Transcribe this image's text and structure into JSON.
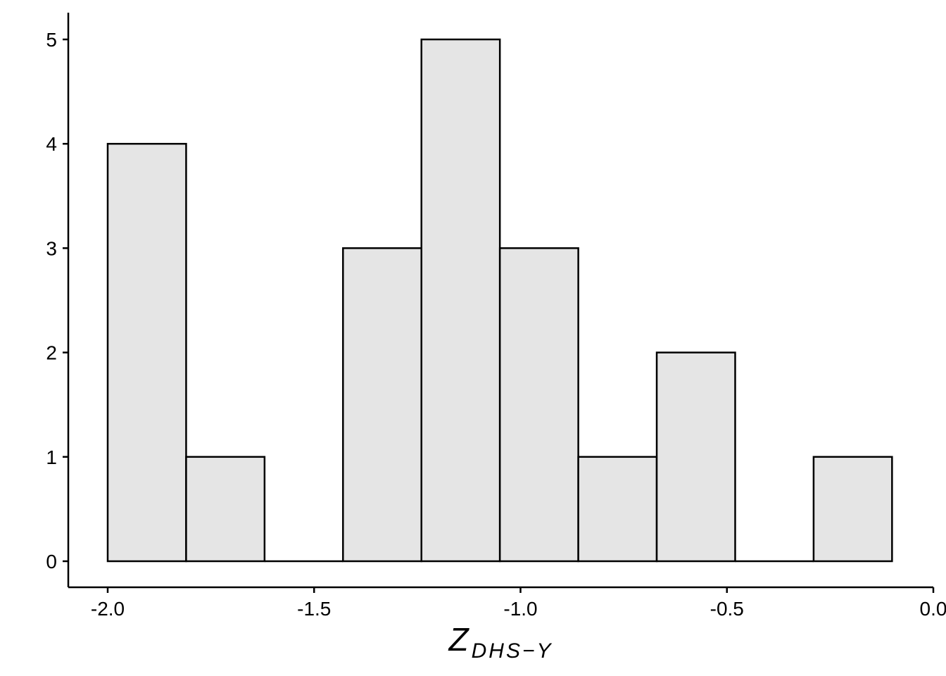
{
  "chart_data": {
    "type": "bar",
    "subtype": "histogram",
    "bins": [
      {
        "x0": -2.0,
        "x1": -1.81,
        "count": 4
      },
      {
        "x0": -1.81,
        "x1": -1.62,
        "count": 1
      },
      {
        "x0": -1.62,
        "x1": -1.43,
        "count": 0
      },
      {
        "x0": -1.43,
        "x1": -1.24,
        "count": 3
      },
      {
        "x0": -1.24,
        "x1": -1.05,
        "count": 5
      },
      {
        "x0": -1.05,
        "x1": -0.86,
        "count": 3
      },
      {
        "x0": -0.86,
        "x1": -0.67,
        "count": 1
      },
      {
        "x0": -0.67,
        "x1": -0.48,
        "count": 2
      },
      {
        "x0": -0.48,
        "x1": -0.29,
        "count": 0
      },
      {
        "x0": -0.29,
        "x1": -0.1,
        "count": 1
      }
    ],
    "xlabel": {
      "main": "Z",
      "subscript": "DHS−Y"
    },
    "ylabel": "",
    "xlim": [
      -2.09,
      0.0
    ],
    "ylim": [
      0,
      5.25
    ],
    "x_ticks": [
      {
        "value": -2.0,
        "label": "-2.0"
      },
      {
        "value": -1.5,
        "label": "-1.5"
      },
      {
        "value": -1.0,
        "label": "-1.0"
      },
      {
        "value": -0.5,
        "label": "-0.5"
      },
      {
        "value": 0.0,
        "label": "0.0"
      }
    ],
    "y_ticks": [
      {
        "value": 0,
        "label": "0"
      },
      {
        "value": 1,
        "label": "1"
      },
      {
        "value": 2,
        "label": "2"
      },
      {
        "value": 3,
        "label": "3"
      },
      {
        "value": 4,
        "label": "4"
      },
      {
        "value": 5,
        "label": "5"
      }
    ],
    "grid": false,
    "bar_fill": "#e5e5e5",
    "bar_stroke": "#000000"
  }
}
